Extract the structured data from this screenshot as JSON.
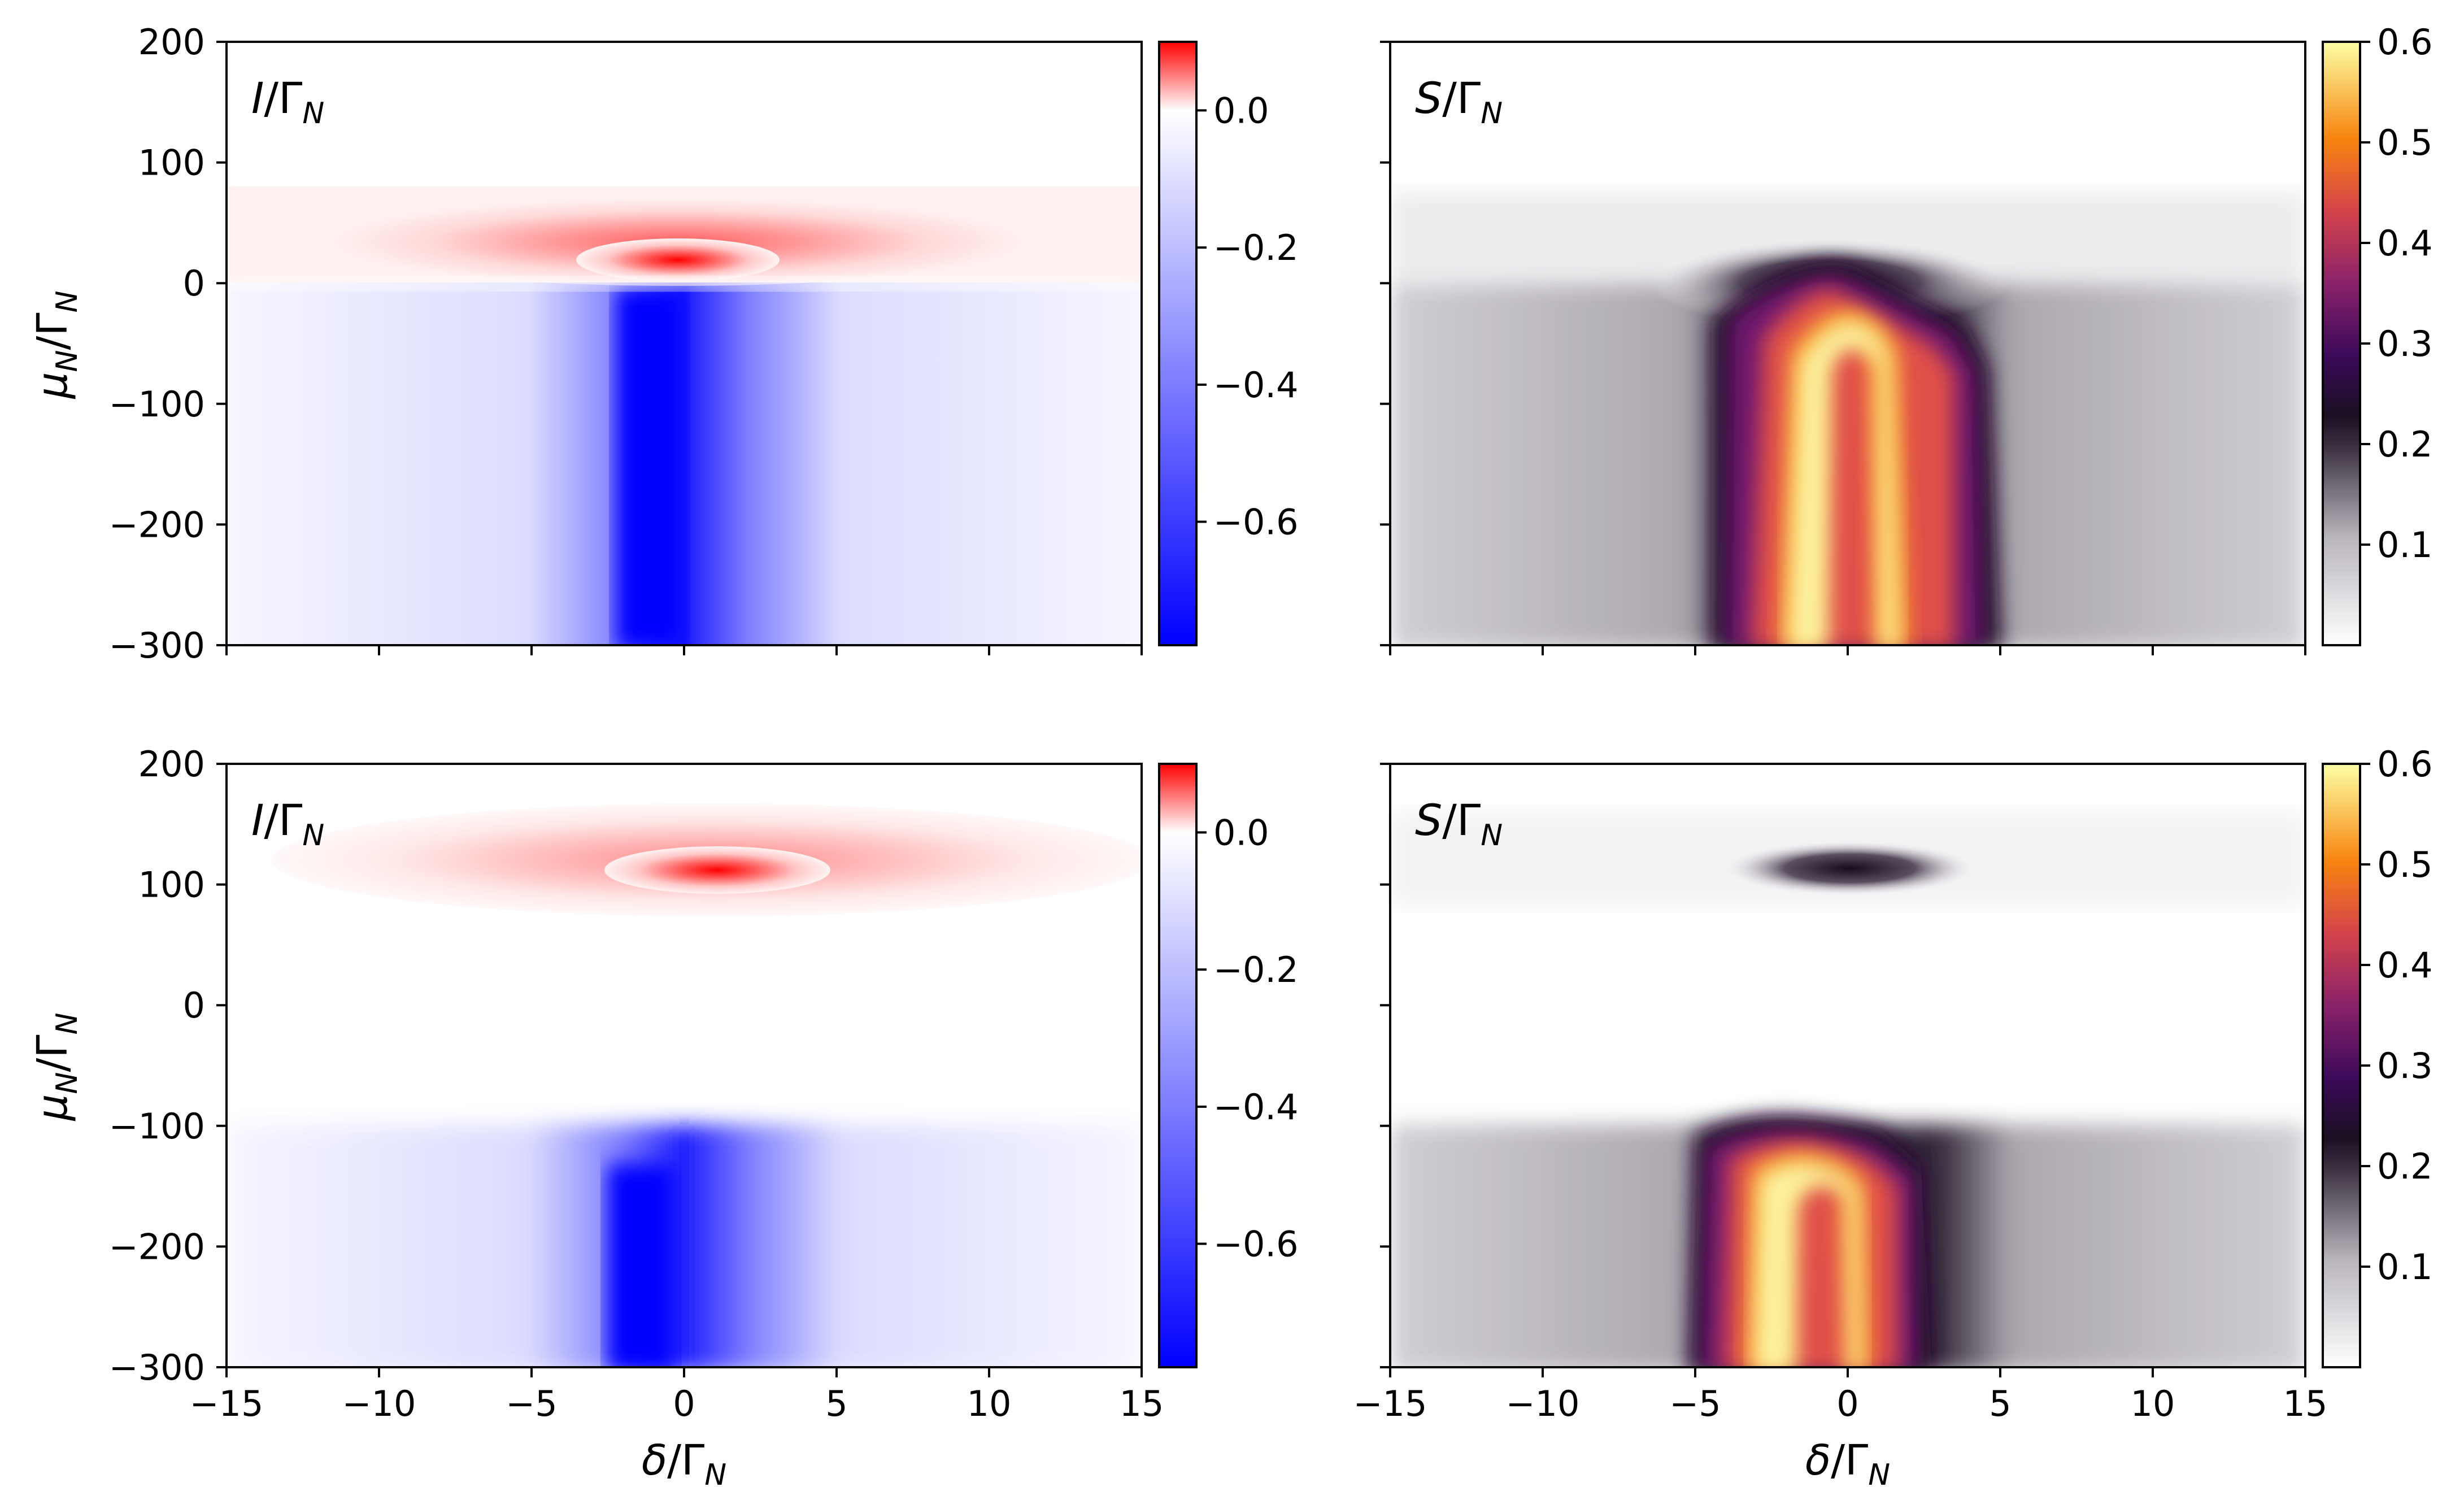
{
  "chart_data": [
    {
      "type": "heatmap",
      "panel": "top-left",
      "annotation": {
        "symbol": "I",
        "sub": "N"
      },
      "xlabel": "",
      "ylabel": {
        "symbol": "μ",
        "sub": "N"
      },
      "xlim": [
        -15,
        15
      ],
      "ylim": [
        -300,
        200
      ],
      "xticks": [
        -15,
        -10,
        -5,
        0,
        5,
        10,
        15
      ],
      "xtick_labels_shown": false,
      "yticks": [
        200,
        100,
        0,
        -100,
        -200,
        -300
      ],
      "ytick_labels": [
        "200",
        "100",
        "0",
        "−100",
        "−200",
        "−300"
      ],
      "colormap": "bwr",
      "colorbar": {
        "range": [
          -0.78,
          0.1
        ],
        "ticks": [
          0.0,
          -0.2,
          -0.4,
          -0.6
        ],
        "tick_labels": [
          "0.0",
          "−0.2",
          "−0.4",
          "−0.6"
        ],
        "colors": [
          "#0000ff",
          "#ffffff",
          "#ff0000"
        ]
      },
      "features": {
        "positive_peak": {
          "delta": -0.7,
          "mu": 12,
          "value": 0.1
        },
        "positive_band_mu": [
          0,
          75
        ],
        "negative_ridge": {
          "delta_center": 0,
          "mu_from": -30,
          "mu_to": -300,
          "value": -0.78
        }
      }
    },
    {
      "type": "heatmap",
      "panel": "top-right",
      "annotation": {
        "symbol": "S",
        "sub": "N"
      },
      "xlim": [
        -15,
        15
      ],
      "ylim": [
        -300,
        200
      ],
      "xticks": [
        -15,
        -10,
        -5,
        0,
        5,
        10,
        15
      ],
      "xtick_labels_shown": false,
      "yticks": [
        200,
        100,
        0,
        -100,
        -200,
        -300
      ],
      "ytick_labels_shown": false,
      "colormap": "inferno_r-like",
      "colorbar": {
        "range": [
          0.0,
          0.6
        ],
        "ticks": [
          0.6,
          0.5,
          0.4,
          0.3,
          0.2,
          0.1
        ],
        "tick_labels": [
          "0.6",
          "0.5",
          "0.4",
          "0.3",
          "0.2",
          "0.1"
        ],
        "colors": [
          "#ffffff",
          "#1a1020",
          "#3d0a57",
          "#6a176e",
          "#c73a4b",
          "#f78212",
          "#fcffa4"
        ]
      },
      "features": {
        "bright_arcs_delta": [
          -2.2,
          1.2
        ],
        "region_mu_top": -10,
        "dark_halo_mu": 15
      }
    },
    {
      "type": "heatmap",
      "panel": "bottom-left",
      "annotation": {
        "symbol": "I",
        "sub": "N"
      },
      "xlabel": {
        "symbol": "δ",
        "sub": "N"
      },
      "ylabel": {
        "symbol": "μ",
        "sub": "N"
      },
      "xlim": [
        -15,
        15
      ],
      "ylim": [
        -300,
        200
      ],
      "xticks": [
        -15,
        -10,
        -5,
        0,
        5,
        10,
        15
      ],
      "xtick_labels": [
        "−15",
        "−10",
        "−5",
        "0",
        "5",
        "10",
        "15"
      ],
      "yticks": [
        200,
        100,
        0,
        -100,
        -200,
        -300
      ],
      "ytick_labels": [
        "200",
        "100",
        "0",
        "−100",
        "−200",
        "−300"
      ],
      "colormap": "bwr",
      "colorbar": {
        "range": [
          -0.78,
          0.1
        ],
        "ticks": [
          0.0,
          -0.2,
          -0.4,
          -0.6
        ],
        "tick_labels": [
          "0.0",
          "−0.2",
          "−0.4",
          "−0.6"
        ],
        "colors": [
          "#0000ff",
          "#ffffff",
          "#ff0000"
        ]
      },
      "features": {
        "positive_peak": {
          "delta": 1.5,
          "mu": 110,
          "value": 0.1
        },
        "negative_ridge": {
          "delta_center": -0.5,
          "mu_from": -115,
          "mu_to": -300,
          "value": -0.78
        }
      }
    },
    {
      "type": "heatmap",
      "panel": "bottom-right",
      "annotation": {
        "symbol": "S",
        "sub": "N"
      },
      "xlabel": {
        "symbol": "δ",
        "sub": "N"
      },
      "xlim": [
        -15,
        15
      ],
      "ylim": [
        -300,
        200
      ],
      "xticks": [
        -15,
        -10,
        -5,
        0,
        5,
        10,
        15
      ],
      "xtick_labels": [
        "−15",
        "−10",
        "−5",
        "0",
        "5",
        "10",
        "15"
      ],
      "yticks": [
        200,
        100,
        0,
        -100,
        -200,
        -300
      ],
      "ytick_labels_shown": false,
      "colormap": "inferno_r-like",
      "colorbar": {
        "range": [
          0.0,
          0.6
        ],
        "ticks": [
          0.6,
          0.5,
          0.4,
          0.3,
          0.2,
          0.1
        ],
        "tick_labels": [
          "0.6",
          "0.5",
          "0.4",
          "0.3",
          "0.2",
          "0.1"
        ],
        "colors": [
          "#ffffff",
          "#1a1020",
          "#3d0a57",
          "#6a176e",
          "#c73a4b",
          "#f78212",
          "#fcffa4"
        ]
      },
      "features": {
        "dark_spot": {
          "delta": 1.2,
          "mu": 112
        },
        "bright_arcs_delta": [
          -2.0,
          1.5
        ],
        "region_mu_top": -100
      }
    }
  ]
}
